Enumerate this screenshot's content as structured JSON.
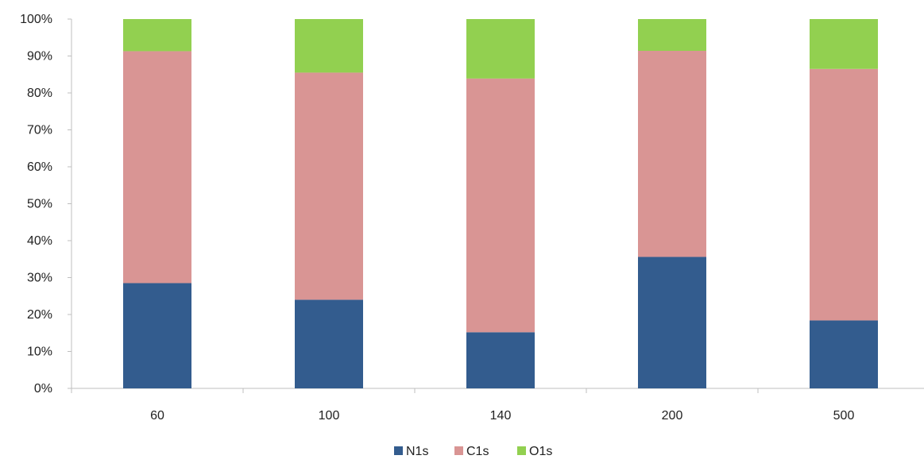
{
  "chart_data": {
    "type": "bar",
    "stacked": true,
    "normalized_percent": true,
    "categories": [
      "60",
      "100",
      "140",
      "200",
      "500"
    ],
    "series": [
      {
        "name": "N1s",
        "color": "#335C8E",
        "values": [
          28.5,
          24.0,
          15.2,
          35.6,
          18.4
        ]
      },
      {
        "name": "C1s",
        "color": "#D99594",
        "values": [
          62.8,
          61.5,
          68.7,
          55.8,
          68.1
        ]
      },
      {
        "name": "O1s",
        "color": "#92D050",
        "values": [
          8.7,
          14.5,
          16.1,
          8.6,
          13.5
        ]
      }
    ],
    "yticks": [
      "0%",
      "10%",
      "20%",
      "30%",
      "40%",
      "50%",
      "60%",
      "70%",
      "80%",
      "90%",
      "100%"
    ],
    "ylim": [
      0,
      100
    ],
    "grid": false,
    "legend": "bottom"
  }
}
